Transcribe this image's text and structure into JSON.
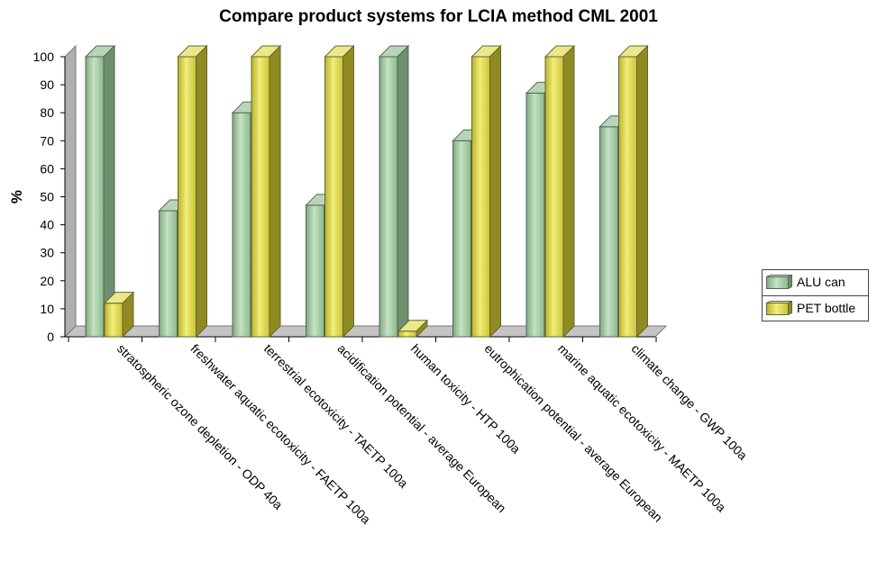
{
  "chart_data": {
    "type": "bar",
    "title": "Compare product systems for LCIA method CML 2001",
    "ylabel": "%",
    "xlabel": "",
    "ylim": [
      0,
      100
    ],
    "yticks": [
      0,
      10,
      20,
      30,
      40,
      50,
      60,
      70,
      80,
      90,
      100
    ],
    "categories": [
      "stratospheric ozone depletion - ODP 40a",
      "freshwater aquatic ecotoxicity - FAETP 100a",
      "terrestrial ecotoxicity - TAETP 100a",
      "acidification potential - average European",
      "human toxicity - HTP 100a",
      "eutrophication potential - average European",
      "marine aquatic ecotoxicity - MAETP 100a",
      "climate change - GWP 100a"
    ],
    "series": [
      {
        "name": "ALU can",
        "color": "#9cc49c",
        "values": [
          100,
          45,
          80,
          47,
          100,
          70,
          87,
          75
        ]
      },
      {
        "name": "PET bottle",
        "color": "#d6d24a",
        "values": [
          12,
          100,
          100,
          100,
          2,
          100,
          100,
          100
        ]
      }
    ],
    "legend_position": "right"
  }
}
